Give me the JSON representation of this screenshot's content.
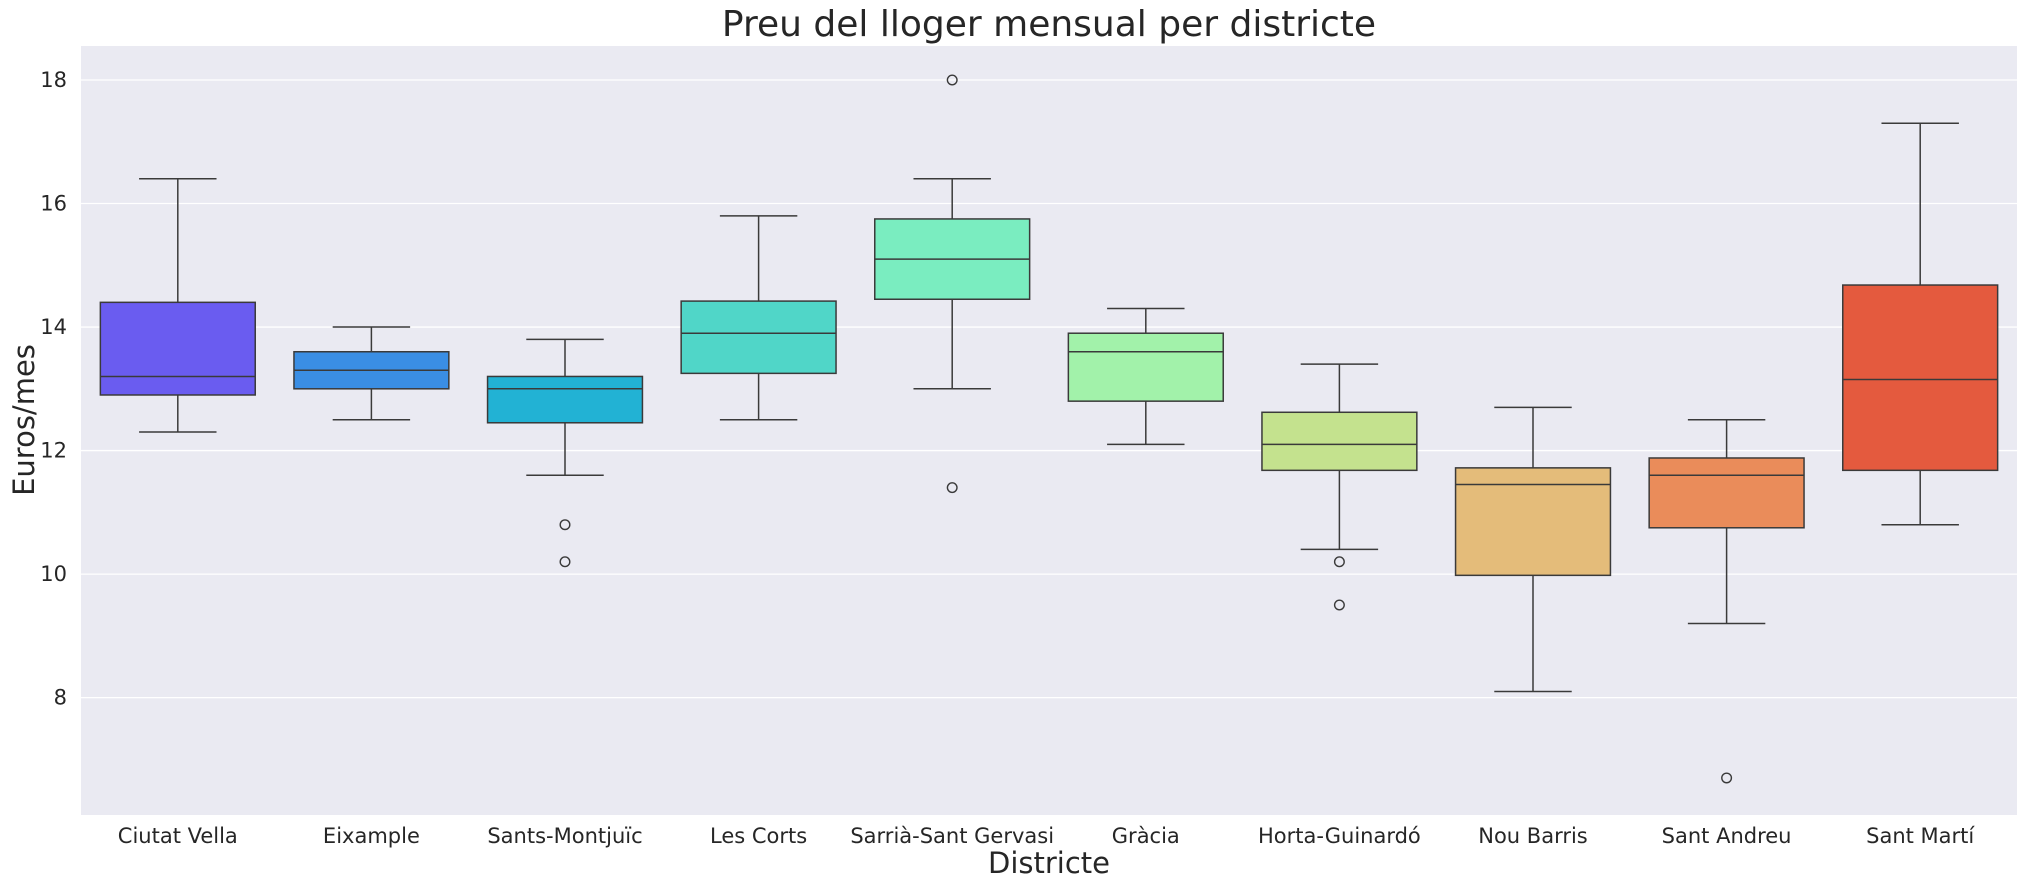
{
  "chart_data": {
    "type": "box",
    "title": "Preu del lloger mensual per districte",
    "xlabel": "Districte",
    "ylabel": "Euros/mes",
    "ylim": [
      6.1,
      18.55
    ],
    "yticks": [
      8,
      10,
      12,
      14,
      16,
      18
    ],
    "grid": "y",
    "categories": [
      "Ciutat Vella",
      "Eixample",
      "Sants-Montjuïc",
      "Les Corts",
      "Sarrià-Sant Gervasi",
      "Gràcia",
      "Horta-Guinardó",
      "Nou Barris",
      "Sant Andreu",
      "Sant Martí"
    ],
    "boxes": [
      {
        "category": "Ciutat Vella",
        "whisker_low": 12.3,
        "q1": 12.9,
        "median": 13.2,
        "q3": 14.4,
        "whisker_high": 16.4,
        "outliers": [],
        "color": "#6a5cf0"
      },
      {
        "category": "Eixample",
        "whisker_low": 12.5,
        "q1": 13.0,
        "median": 13.3,
        "q3": 13.6,
        "whisker_high": 14.0,
        "outliers": [],
        "color": "#3a8ee4"
      },
      {
        "category": "Sants-Montjuïc",
        "whisker_low": 11.6,
        "q1": 12.45,
        "median": 13.0,
        "q3": 13.2,
        "whisker_high": 13.8,
        "outliers": [
          10.8,
          10.2
        ],
        "color": "#22b2d4"
      },
      {
        "category": "Les Corts",
        "whisker_low": 12.5,
        "q1": 13.25,
        "median": 13.9,
        "q3": 14.42,
        "whisker_high": 15.8,
        "outliers": [],
        "color": "#50d6c8"
      },
      {
        "category": "Sarrià-Sant Gervasi",
        "whisker_low": 13.0,
        "q1": 14.45,
        "median": 15.1,
        "q3": 15.75,
        "whisker_high": 16.4,
        "outliers": [
          18.0,
          11.4
        ],
        "color": "#7aedc0"
      },
      {
        "category": "Gràcia",
        "whisker_low": 12.1,
        "q1": 12.8,
        "median": 13.6,
        "q3": 13.9,
        "whisker_high": 14.3,
        "outliers": [],
        "color": "#a2f2aa"
      },
      {
        "category": "Horta-Guinardó",
        "whisker_low": 10.4,
        "q1": 11.68,
        "median": 12.1,
        "q3": 12.62,
        "whisker_high": 13.4,
        "outliers": [
          10.2,
          9.5
        ],
        "color": "#c4e28e"
      },
      {
        "category": "Nou Barris",
        "whisker_low": 8.1,
        "q1": 9.98,
        "median": 11.45,
        "q3": 11.72,
        "whisker_high": 12.7,
        "outliers": [],
        "color": "#e4bc7a"
      },
      {
        "category": "Sant Andreu",
        "whisker_low": 9.2,
        "q1": 10.75,
        "median": 11.6,
        "q3": 11.88,
        "whisker_high": 12.5,
        "outliers": [
          6.7
        ],
        "color": "#ea8c5a"
      },
      {
        "category": "Sant Martí",
        "whisker_low": 10.8,
        "q1": 11.68,
        "median": 13.15,
        "q3": 14.68,
        "whisker_high": 17.3,
        "outliers": [],
        "color": "#e45a3e"
      }
    ],
    "colors": {
      "plot_background": "#eaeaf2",
      "grid": "#ffffff",
      "lines": "#3a3a3a"
    }
  }
}
